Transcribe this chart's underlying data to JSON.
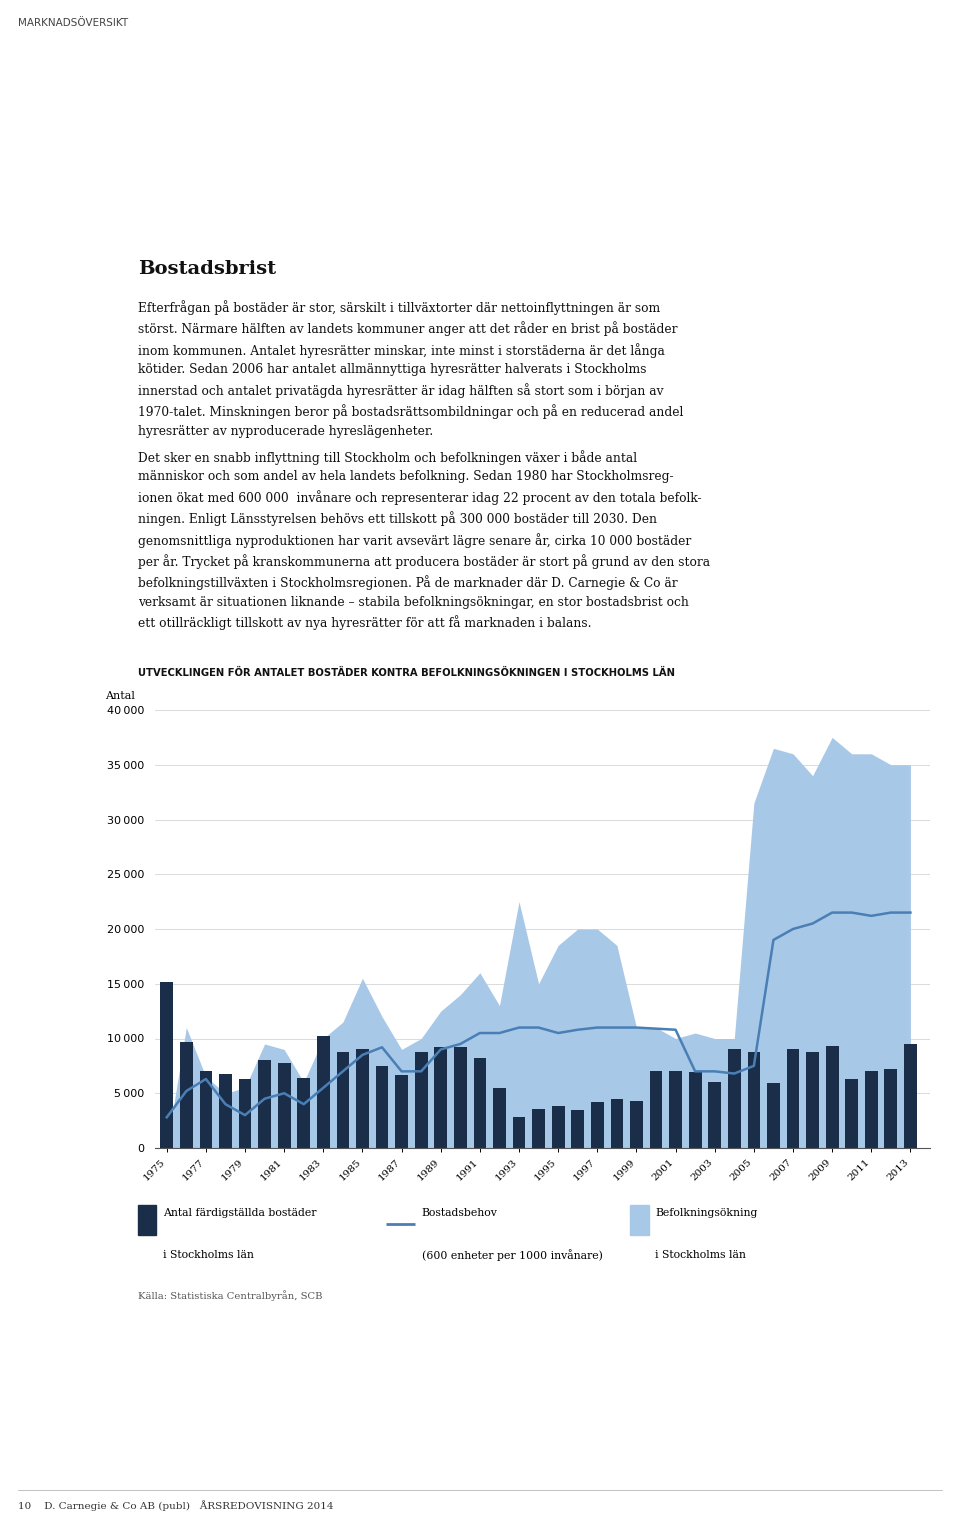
{
  "page_title": "MARKNADSÖVERSIKT",
  "chart_title": "UTVECKLINGEN FÖR ANTALET BOSTÄDER KONTRA BEFOLKNINGSÖKNINGEN I STOCKHOLMS LÄN",
  "ylabel": "Antal",
  "ylim": [
    0,
    40000
  ],
  "yticks": [
    0,
    5000,
    10000,
    15000,
    20000,
    25000,
    30000,
    35000,
    40000
  ],
  "source": "Källa: Statistiska Centralbyrån, SCB",
  "heading": "Bostadsbrist",
  "para1_lines": [
    "Efterfrågan på bostäder är stor, särskilt i tillväxtorter där nettoinflyttningen är som",
    "störst. Närmare hälften av landets kommuner anger att det råder en brist på bostäder",
    "inom kommunen. Antalet hyresrätter minskar, inte minst i storstäderna är det långa",
    "kötider. Sedan 2006 har antalet allmännyttiga hyresrätter halverats i Stockholms",
    "innerstad och antalet privatägda hyresrätter är idag hälften så stort som i början av",
    "1970-talet. Minskningen beror på bostadsrättsombildningar och på en reducerad andel",
    "hyresrätter av nyproducerade hyreslägenheter."
  ],
  "para2_lines": [
    "Det sker en snabb inflyttning till Stockholm och befolkningen växer i både antal",
    "människor och som andel av hela landets befolkning. Sedan 1980 har Stockholmsreg-",
    "ionen ökat med 600 000  invånare och representerar idag 22 procent av den totala befolk-",
    "ningen. Enligt Länsstyrelsen behövs ett tillskott på 300 000 bostäder till 2030. Den",
    "genomsnittliga nyproduktionen har varit avsevärt lägre senare år, cirka 10 000 bostäder",
    "per år. Trycket på kranskommunerna att producera bostäder är stort på grund av den stora",
    "befolkningstillväxten i Stockholmsregionen. På de marknader där D. Carnegie & Co är",
    "verksamt är situationen liknande – stabila befolkningsökningar, en stor bostadsbrist och",
    "ett otillräckligt tillskott av nya hyresrätter för att få marknaden i balans."
  ],
  "footer": "10    D. Carnegie & Co AB (publ)   ÅRSREDOVISNING 2014",
  "years": [
    1975,
    1976,
    1977,
    1978,
    1979,
    1980,
    1981,
    1982,
    1983,
    1984,
    1985,
    1986,
    1987,
    1988,
    1989,
    1990,
    1991,
    1992,
    1993,
    1994,
    1995,
    1996,
    1997,
    1998,
    1999,
    2000,
    2001,
    2002,
    2003,
    2004,
    2005,
    2006,
    2007,
    2008,
    2009,
    2010,
    2011,
    2012,
    2013
  ],
  "bar_values": [
    15200,
    9700,
    7000,
    6800,
    6300,
    8000,
    7800,
    6400,
    10200,
    8800,
    9000,
    7500,
    6700,
    8800,
    9200,
    9200,
    8200,
    5500,
    2800,
    3600,
    3800,
    3500,
    4200,
    4500,
    4300,
    7000,
    7000,
    6900,
    6000,
    9000,
    8800,
    5900,
    9000,
    8800,
    9300,
    6300,
    7000,
    7200,
    9500
  ],
  "line_values": [
    2800,
    5200,
    6300,
    4000,
    3000,
    4500,
    5000,
    4000,
    5500,
    7000,
    8500,
    9200,
    7000,
    7000,
    9000,
    9500,
    10500,
    10500,
    11000,
    11000,
    10500,
    10800,
    11000,
    11000,
    11000,
    10900,
    10800,
    7000,
    7000,
    6800,
    7500,
    19000,
    20000,
    20500,
    21500,
    21500,
    21200,
    21500,
    21500
  ],
  "area_values": [
    0,
    11000,
    6500,
    5000,
    5500,
    9500,
    9000,
    6000,
    10000,
    11500,
    15500,
    12000,
    9000,
    10000,
    12500,
    14000,
    16000,
    13000,
    22500,
    15000,
    18500,
    20000,
    20000,
    18500,
    11000,
    11000,
    10000,
    10500,
    10000,
    10000,
    31500,
    36500,
    36000,
    34000,
    37500,
    36000,
    36000,
    35000,
    35000
  ],
  "bar_color": "#1a2e4a",
  "line_color": "#4a7fb5",
  "area_color": "#a8c8e8",
  "legend1_label1": "Antal färdigställda bostäder",
  "legend1_label2": "i Stockholms län",
  "legend2_label1": "Bostadsbehov",
  "legend2_label2": "(600 enheter per 1000 invånare)",
  "legend3_label1": "Befolkningsökning",
  "legend3_label2": "i Stockholms län",
  "xtick_labels": [
    "1975",
    "1977",
    "1979",
    "1981",
    "1983",
    "1985",
    "1987",
    "1989",
    "1991",
    "1993",
    "1995",
    "1997",
    "1999",
    "2001",
    "2003",
    "2005",
    "2007",
    "2009",
    "2011",
    "2013"
  ],
  "background_color": "#ffffff"
}
